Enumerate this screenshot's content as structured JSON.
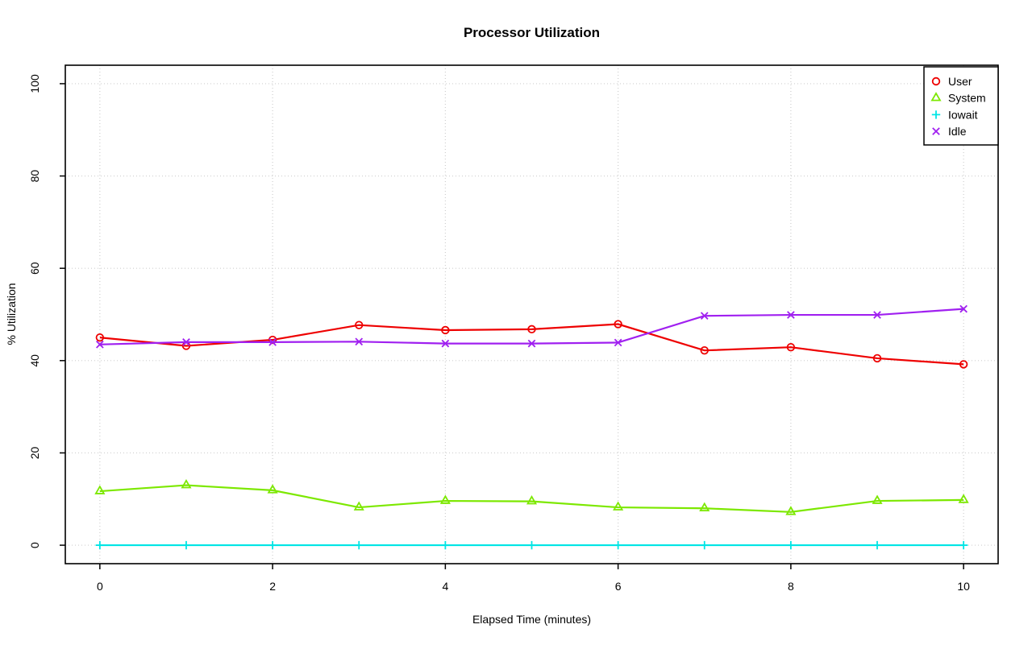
{
  "chart_data": {
    "type": "line",
    "title": "Processor Utilization",
    "xlabel": "Elapsed Time (minutes)",
    "ylabel": "% Utilization",
    "x": [
      0,
      1,
      2,
      3,
      4,
      5,
      6,
      7,
      8,
      9,
      10
    ],
    "xticks": [
      0,
      2,
      4,
      6,
      8,
      10
    ],
    "yticks": [
      0,
      20,
      40,
      60,
      80,
      100
    ],
    "xlim": [
      0,
      10
    ],
    "ylim": [
      0,
      100
    ],
    "grid": true,
    "grid_color": "#cfcfcf",
    "axis_color": "#000000",
    "legend_position": "topright",
    "series": [
      {
        "name": "User",
        "color": "#ee0000",
        "marker": "circle",
        "values": [
          45.0,
          43.2,
          44.5,
          47.7,
          46.6,
          46.8,
          47.9,
          42.2,
          42.9,
          40.5,
          39.2
        ]
      },
      {
        "name": "System",
        "color": "#7ce800",
        "marker": "triangle",
        "values": [
          11.7,
          13.0,
          11.9,
          8.2,
          9.6,
          9.5,
          8.2,
          8.0,
          7.2,
          9.6,
          9.8
        ]
      },
      {
        "name": "Iowait",
        "color": "#00e5e5",
        "marker": "plus",
        "values": [
          0,
          0,
          0,
          0,
          0,
          0,
          0,
          0,
          0,
          0,
          0
        ]
      },
      {
        "name": "Idle",
        "color": "#a020f0",
        "marker": "x",
        "values": [
          43.5,
          44.0,
          44.0,
          44.1,
          43.7,
          43.7,
          43.9,
          49.7,
          49.9,
          49.9,
          51.2
        ]
      }
    ]
  }
}
